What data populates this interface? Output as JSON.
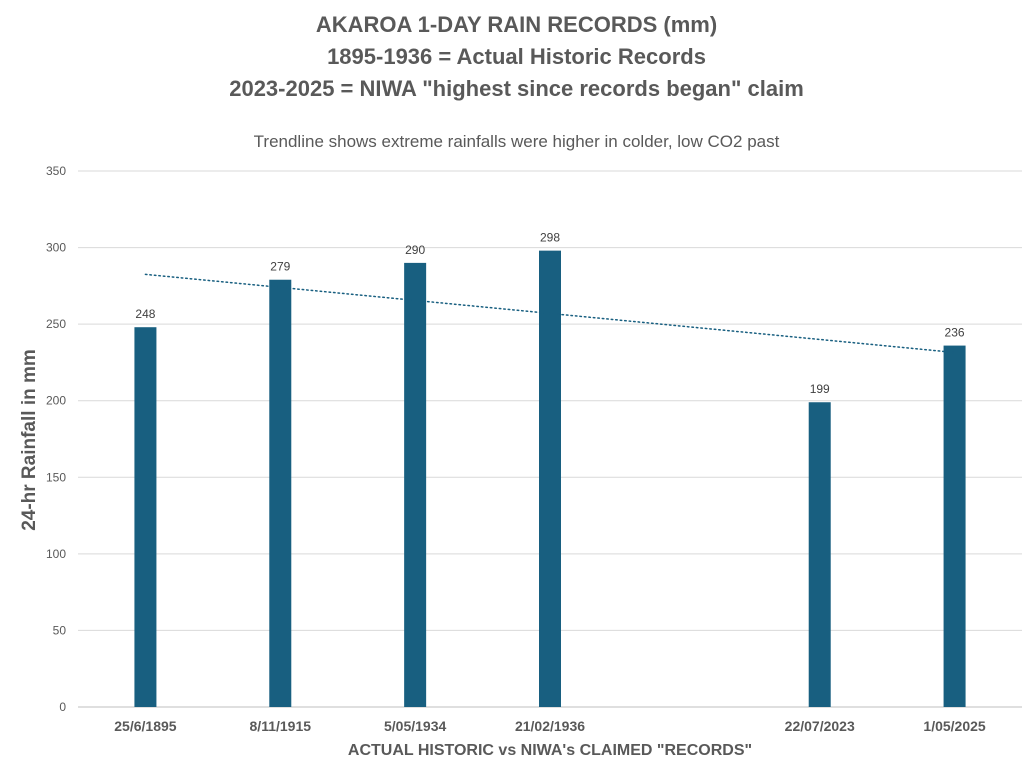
{
  "chart_data": {
    "type": "bar",
    "title": "AKAROA 1-DAY RAIN RECORDS (mm)",
    "title_line2": "1895-1936 = Actual Historic Records",
    "title_line3": "2023-2025 = NIWA \"highest since records began\" claim",
    "subtitle": "Trendline shows extreme rainfalls were higher in colder, low CO2 past",
    "xlabel": "ACTUAL HISTORIC vs NIWA's CLAIMED \"RECORDS\"",
    "ylabel": "24-hr Rainfall in mm",
    "categories": [
      "25/6/1895",
      "8/11/1915",
      "5/05/1934",
      "21/02/1936",
      "",
      "22/07/2023",
      "1/05/2025"
    ],
    "values": [
      248,
      279,
      290,
      298,
      null,
      199,
      236
    ],
    "data_labels": [
      "248",
      "279",
      "290",
      "298",
      "",
      "199",
      "236"
    ],
    "ylim": [
      0,
      350
    ],
    "yticks": [
      0,
      50,
      100,
      150,
      200,
      250,
      300,
      350
    ],
    "grid": true,
    "trendline": {
      "type": "linear",
      "style": "dotted",
      "start": 282.5,
      "end": 231.5
    },
    "colors": {
      "bar": "#185f80",
      "trend": "#185f80",
      "grid": "#d9d9d9",
      "text": "#595959"
    }
  }
}
